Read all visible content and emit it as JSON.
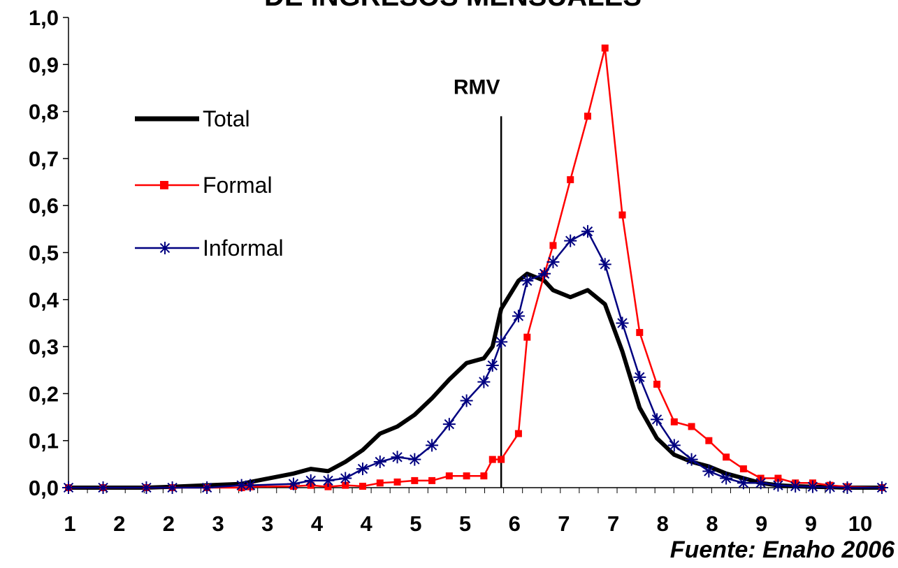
{
  "chart_data": {
    "type": "line",
    "title": "DE INGRESOS MENSUALES",
    "source": "Fuente: Enaho 2006",
    "xlabel": "",
    "ylabel": "",
    "ylim": [
      0,
      1.0
    ],
    "y_ticks": [
      "0,0",
      "0,1",
      "0,2",
      "0,3",
      "0,4",
      "0,5",
      "0,6",
      "0,7",
      "0,8",
      "0,9",
      "1,0"
    ],
    "x_tick_labels": [
      "1",
      "2",
      "2",
      "3",
      "3",
      "4",
      "4",
      "5",
      "5",
      "6",
      "7",
      "7",
      "8",
      "8",
      "9",
      "9",
      "10"
    ],
    "reference_line": {
      "label": "RMV",
      "x": 6.0,
      "y_top": 0.79
    },
    "legend": {
      "position": "upper-left"
    },
    "series": [
      {
        "name": "Total",
        "color": "#000000",
        "marker": "none",
        "x": [
          1.0,
          1.4,
          1.9,
          2.2,
          2.6,
          3.0,
          3.1,
          3.6,
          3.8,
          4.0,
          4.2,
          4.4,
          4.6,
          4.8,
          5.0,
          5.2,
          5.4,
          5.6,
          5.8,
          5.9,
          6.0,
          6.2,
          6.3,
          6.5,
          6.6,
          6.8,
          7.0,
          7.2,
          7.4,
          7.6,
          7.8,
          8.0,
          8.2,
          8.4,
          8.6,
          8.8,
          9.0,
          9.2,
          9.4,
          9.6,
          9.8,
          10.0,
          10.4
        ],
        "values": [
          0.0,
          0.0,
          0.0,
          0.002,
          0.005,
          0.008,
          0.012,
          0.03,
          0.04,
          0.035,
          0.055,
          0.08,
          0.115,
          0.13,
          0.155,
          0.19,
          0.23,
          0.265,
          0.275,
          0.3,
          0.38,
          0.44,
          0.455,
          0.44,
          0.42,
          0.405,
          0.42,
          0.39,
          0.29,
          0.17,
          0.105,
          0.07,
          0.055,
          0.045,
          0.03,
          0.02,
          0.01,
          0.005,
          0.003,
          0.002,
          0.001,
          0.0,
          0.0
        ]
      },
      {
        "name": "Formal",
        "color": "#ff0000",
        "marker": "square",
        "x": [
          1.0,
          1.4,
          1.9,
          2.2,
          2.6,
          3.0,
          3.1,
          3.6,
          3.8,
          4.0,
          4.2,
          4.4,
          4.6,
          4.8,
          5.0,
          5.2,
          5.4,
          5.6,
          5.8,
          5.9,
          6.0,
          6.2,
          6.3,
          6.5,
          6.6,
          6.8,
          7.0,
          7.2,
          7.4,
          7.6,
          7.8,
          8.0,
          8.2,
          8.4,
          8.6,
          8.8,
          9.0,
          9.2,
          9.4,
          9.6,
          9.8,
          10.0,
          10.4
        ],
        "values": [
          0.0,
          0.0,
          0.0,
          0.0,
          0.0,
          0.0,
          0.002,
          0.003,
          0.005,
          0.002,
          0.005,
          0.003,
          0.01,
          0.012,
          0.015,
          0.015,
          0.025,
          0.025,
          0.025,
          0.06,
          0.06,
          0.115,
          0.32,
          0.455,
          0.515,
          0.655,
          0.79,
          0.935,
          0.58,
          0.33,
          0.22,
          0.14,
          0.13,
          0.1,
          0.065,
          0.04,
          0.02,
          0.02,
          0.01,
          0.01,
          0.005,
          0.002,
          0.0
        ]
      },
      {
        "name": "Informal",
        "color": "#000080",
        "marker": "star",
        "x": [
          1.0,
          1.4,
          1.9,
          2.2,
          2.6,
          3.0,
          3.1,
          3.6,
          3.8,
          4.0,
          4.2,
          4.4,
          4.6,
          4.8,
          5.0,
          5.2,
          5.4,
          5.6,
          5.8,
          5.9,
          6.0,
          6.2,
          6.3,
          6.5,
          6.6,
          6.8,
          7.0,
          7.2,
          7.4,
          7.6,
          7.8,
          8.0,
          8.2,
          8.4,
          8.6,
          8.8,
          9.0,
          9.2,
          9.4,
          9.6,
          9.8,
          10.0,
          10.4
        ],
        "values": [
          0.0,
          0.0,
          0.0,
          0.0,
          0.0,
          0.005,
          0.005,
          0.008,
          0.015,
          0.015,
          0.02,
          0.04,
          0.055,
          0.065,
          0.06,
          0.09,
          0.135,
          0.185,
          0.225,
          0.26,
          0.31,
          0.365,
          0.44,
          0.455,
          0.48,
          0.525,
          0.545,
          0.475,
          0.35,
          0.235,
          0.145,
          0.09,
          0.06,
          0.035,
          0.02,
          0.01,
          0.01,
          0.005,
          0.003,
          0.002,
          0.001,
          0.0,
          0.0
        ]
      }
    ]
  }
}
